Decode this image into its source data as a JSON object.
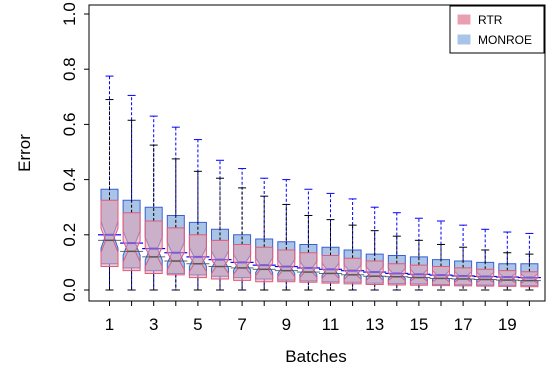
{
  "chart_data": {
    "type": "boxplot",
    "xlabel": "Batches",
    "ylabel": "Error",
    "ylim": [
      0.0,
      1.0
    ],
    "yticks": [
      "0.0",
      "0.2",
      "0.4",
      "0.6",
      "0.8",
      "1.0"
    ],
    "xtick_labels": [
      "1",
      "3",
      "5",
      "7",
      "9",
      "11",
      "13",
      "15",
      "17",
      "19"
    ],
    "categories": [
      1,
      2,
      3,
      4,
      5,
      6,
      7,
      8,
      9,
      10,
      11,
      12,
      13,
      14,
      15,
      16,
      17,
      18,
      19,
      20
    ],
    "legend_position": "top-right",
    "colors": {
      "rtr_fill": "#e8a0b0",
      "rtr_border": "#e05a7a",
      "monroe_fill": "#a9c4e6",
      "monroe_border": "#3a5fd0",
      "monroe_median": "#0000ff",
      "whisker_rtr": "#000000",
      "whisker_monroe": "#0000ff"
    },
    "series": [
      {
        "name": "RTR",
        "boxes": [
          {
            "batch": 1,
            "min": 0.0,
            "q1": 0.085,
            "median": 0.18,
            "q3": 0.325,
            "max": 0.69
          },
          {
            "batch": 2,
            "min": 0.0,
            "q1": 0.07,
            "median": 0.14,
            "q3": 0.28,
            "max": 0.615
          },
          {
            "batch": 3,
            "min": 0.0,
            "q1": 0.06,
            "median": 0.12,
            "q3": 0.25,
            "max": 0.525
          },
          {
            "batch": 4,
            "min": 0.0,
            "q1": 0.055,
            "median": 0.105,
            "q3": 0.225,
            "max": 0.475
          },
          {
            "batch": 5,
            "min": 0.0,
            "q1": 0.045,
            "median": 0.095,
            "q3": 0.2,
            "max": 0.43
          },
          {
            "batch": 6,
            "min": 0.0,
            "q1": 0.04,
            "median": 0.085,
            "q3": 0.18,
            "max": 0.405
          },
          {
            "batch": 7,
            "min": 0.0,
            "q1": 0.035,
            "median": 0.08,
            "q3": 0.165,
            "max": 0.37
          },
          {
            "batch": 8,
            "min": 0.0,
            "q1": 0.03,
            "median": 0.075,
            "q3": 0.155,
            "max": 0.34
          },
          {
            "batch": 9,
            "min": 0.0,
            "q1": 0.03,
            "median": 0.07,
            "q3": 0.145,
            "max": 0.31
          },
          {
            "batch": 10,
            "min": 0.0,
            "q1": 0.028,
            "median": 0.065,
            "q3": 0.135,
            "max": 0.27
          },
          {
            "batch": 11,
            "min": 0.0,
            "q1": 0.025,
            "median": 0.06,
            "q3": 0.125,
            "max": 0.255
          },
          {
            "batch": 12,
            "min": 0.0,
            "q1": 0.022,
            "median": 0.055,
            "q3": 0.115,
            "max": 0.235
          },
          {
            "batch": 13,
            "min": 0.0,
            "q1": 0.02,
            "median": 0.05,
            "q3": 0.105,
            "max": 0.215
          },
          {
            "batch": 14,
            "min": 0.0,
            "q1": 0.018,
            "median": 0.048,
            "q3": 0.095,
            "max": 0.195
          },
          {
            "batch": 15,
            "min": 0.0,
            "q1": 0.017,
            "median": 0.045,
            "q3": 0.09,
            "max": 0.18
          },
          {
            "batch": 16,
            "min": 0.0,
            "q1": 0.016,
            "median": 0.042,
            "q3": 0.085,
            "max": 0.165
          },
          {
            "batch": 17,
            "min": 0.0,
            "q1": 0.015,
            "median": 0.04,
            "q3": 0.08,
            "max": 0.155
          },
          {
            "batch": 18,
            "min": 0.0,
            "q1": 0.014,
            "median": 0.038,
            "q3": 0.075,
            "max": 0.145
          },
          {
            "batch": 19,
            "min": 0.0,
            "q1": 0.013,
            "median": 0.036,
            "q3": 0.07,
            "max": 0.135
          },
          {
            "batch": 20,
            "min": 0.0,
            "q1": 0.012,
            "median": 0.034,
            "q3": 0.066,
            "max": 0.13
          }
        ]
      },
      {
        "name": "MONROE",
        "boxes": [
          {
            "batch": 1,
            "min": 0.0,
            "q1": 0.095,
            "median": 0.2,
            "q3": 0.365,
            "max": 0.775
          },
          {
            "batch": 2,
            "min": 0.0,
            "q1": 0.08,
            "median": 0.17,
            "q3": 0.325,
            "max": 0.705
          },
          {
            "batch": 3,
            "min": 0.0,
            "q1": 0.07,
            "median": 0.15,
            "q3": 0.3,
            "max": 0.63
          },
          {
            "batch": 4,
            "min": 0.0,
            "q1": 0.06,
            "median": 0.135,
            "q3": 0.27,
            "max": 0.59
          },
          {
            "batch": 5,
            "min": 0.0,
            "q1": 0.055,
            "median": 0.12,
            "q3": 0.245,
            "max": 0.545
          },
          {
            "batch": 6,
            "min": 0.0,
            "q1": 0.05,
            "median": 0.11,
            "q3": 0.22,
            "max": 0.47
          },
          {
            "batch": 7,
            "min": 0.0,
            "q1": 0.045,
            "median": 0.1,
            "q3": 0.2,
            "max": 0.44
          },
          {
            "batch": 8,
            "min": 0.0,
            "q1": 0.04,
            "median": 0.09,
            "q3": 0.185,
            "max": 0.405
          },
          {
            "batch": 9,
            "min": 0.0,
            "q1": 0.036,
            "median": 0.085,
            "q3": 0.175,
            "max": 0.4
          },
          {
            "batch": 10,
            "min": 0.0,
            "q1": 0.033,
            "median": 0.08,
            "q3": 0.165,
            "max": 0.365
          },
          {
            "batch": 11,
            "min": 0.0,
            "q1": 0.03,
            "median": 0.075,
            "q3": 0.155,
            "max": 0.35
          },
          {
            "batch": 12,
            "min": 0.0,
            "q1": 0.028,
            "median": 0.07,
            "q3": 0.145,
            "max": 0.33
          },
          {
            "batch": 13,
            "min": 0.0,
            "q1": 0.025,
            "median": 0.065,
            "q3": 0.13,
            "max": 0.3
          },
          {
            "batch": 14,
            "min": 0.0,
            "q1": 0.023,
            "median": 0.06,
            "q3": 0.125,
            "max": 0.28
          },
          {
            "batch": 15,
            "min": 0.0,
            "q1": 0.022,
            "median": 0.057,
            "q3": 0.12,
            "max": 0.26
          },
          {
            "batch": 16,
            "min": 0.0,
            "q1": 0.02,
            "median": 0.054,
            "q3": 0.11,
            "max": 0.25
          },
          {
            "batch": 17,
            "min": 0.0,
            "q1": 0.019,
            "median": 0.051,
            "q3": 0.105,
            "max": 0.235
          },
          {
            "batch": 18,
            "min": 0.0,
            "q1": 0.018,
            "median": 0.049,
            "q3": 0.1,
            "max": 0.22
          },
          {
            "batch": 19,
            "min": 0.0,
            "q1": 0.017,
            "median": 0.047,
            "q3": 0.095,
            "max": 0.21
          },
          {
            "batch": 20,
            "min": 0.0,
            "q1": 0.016,
            "median": 0.045,
            "q3": 0.095,
            "max": 0.205
          }
        ]
      }
    ]
  }
}
